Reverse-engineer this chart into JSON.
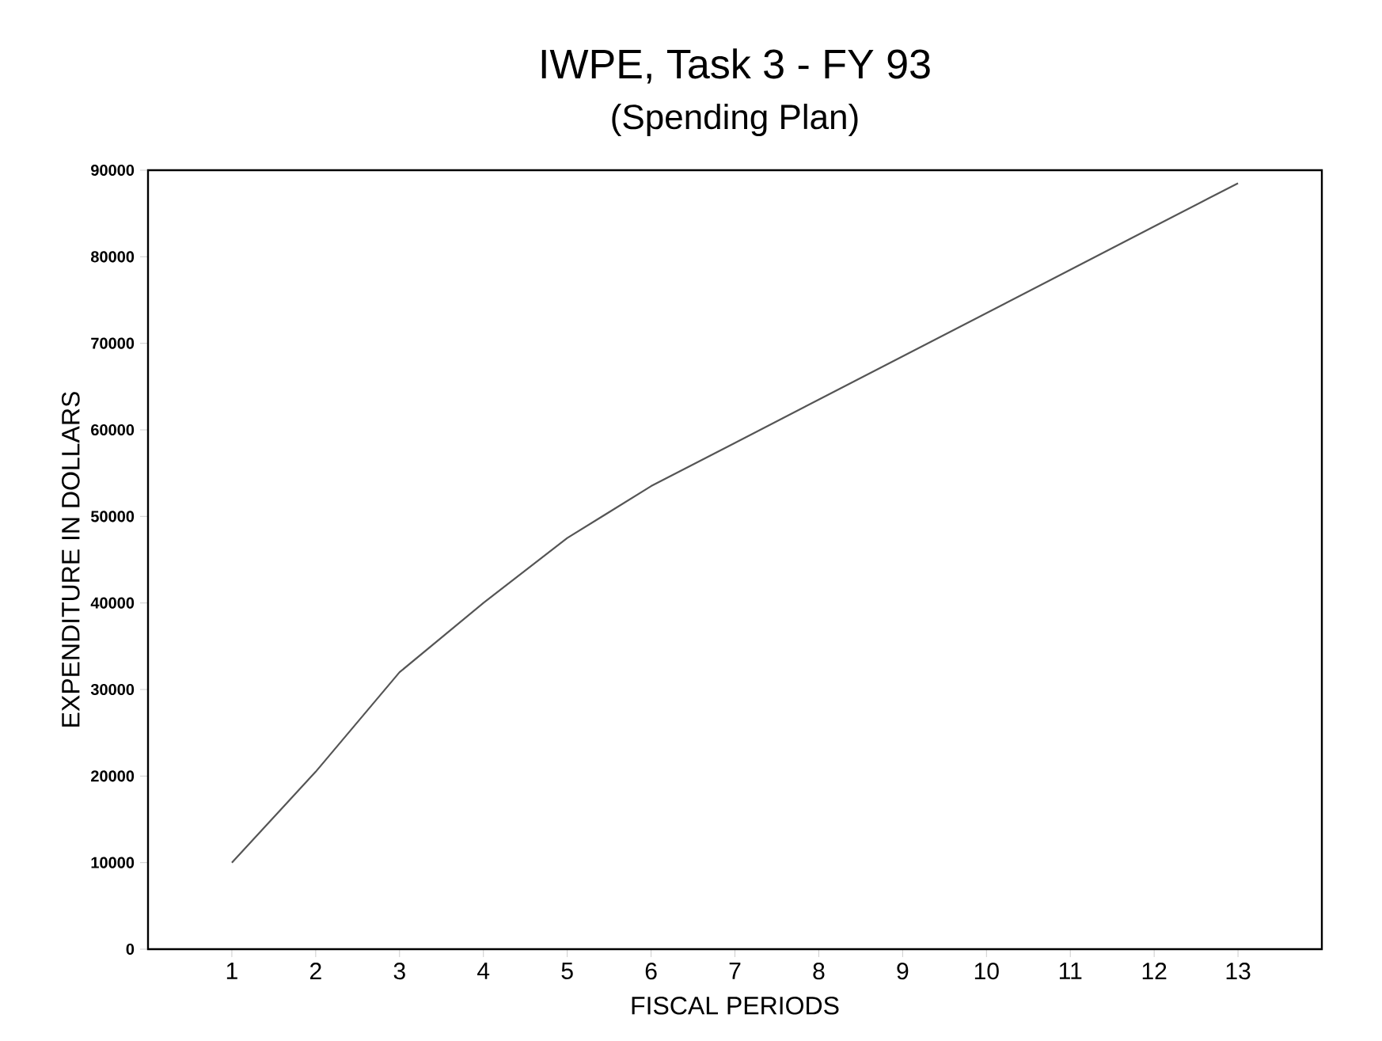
{
  "chart_data": {
    "type": "line",
    "title": "IWPE, Task 3 - FY 93",
    "subtitle": "(Spending Plan)",
    "xlabel": "FISCAL PERIODS",
    "ylabel": "EXPENDITURE IN DOLLARS",
    "x": [
      1,
      2,
      3,
      4,
      5,
      6,
      7,
      8,
      9,
      10,
      11,
      12,
      13
    ],
    "series": [
      {
        "color": "#555555",
        "values": [
          10000,
          20500,
          32000,
          40000,
          47500,
          53500,
          58500,
          63500,
          68500,
          73500,
          78500,
          83500,
          88500
        ]
      }
    ],
    "xlim": [
      0,
      14
    ],
    "ylim": [
      0,
      90000
    ],
    "xticks": [
      1,
      2,
      3,
      4,
      5,
      6,
      7,
      8,
      9,
      10,
      11,
      12,
      13
    ],
    "yticks": [
      0,
      10000,
      20000,
      30000,
      40000,
      50000,
      60000,
      70000,
      80000,
      90000
    ],
    "marker": "none",
    "line_style": "solid"
  }
}
